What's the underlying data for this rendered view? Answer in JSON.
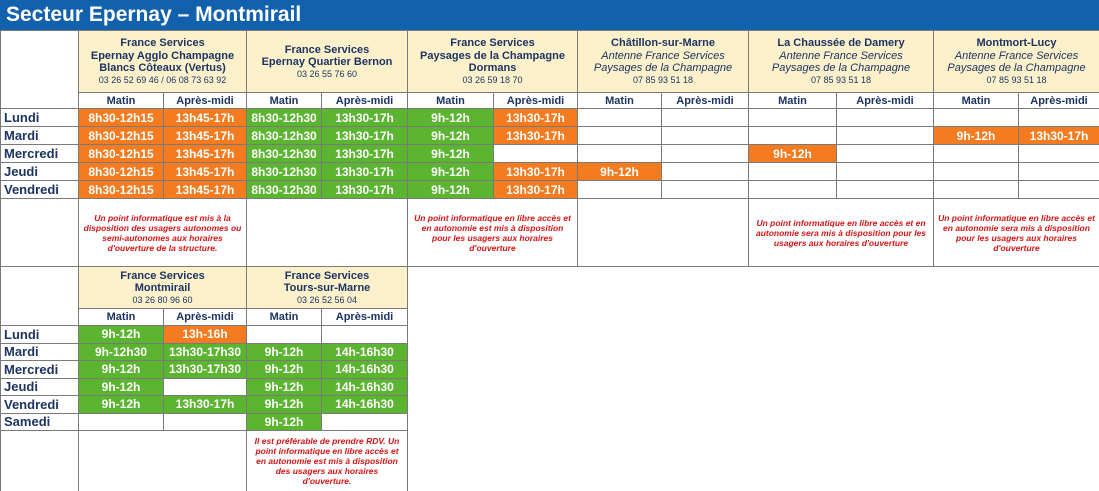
{
  "title": "Secteur Epernay – Montmirail",
  "slots": [
    "Matin",
    "Après-midi"
  ],
  "blocks": [
    {
      "days": [
        "Lundi",
        "Mardi",
        "Mercredi",
        "Jeudi",
        "Vendredi"
      ],
      "services": [
        {
          "name": [
            "France Services",
            "Epernay Agglo Champagne",
            "Blancs Côteaux (Vertus)"
          ],
          "phone": "03 26 52 69 46 / 06 08 73 63 92",
          "schedule": [
            [
              {
                "text": "8h30-12h15",
                "color": "#f47b20"
              },
              {
                "text": "13h45-17h",
                "color": "#f47b20"
              }
            ],
            [
              {
                "text": "8h30-12h15",
                "color": "#f47b20"
              },
              {
                "text": "13h45-17h",
                "color": "#f47b20"
              }
            ],
            [
              {
                "text": "8h30-12h15",
                "color": "#f47b20"
              },
              {
                "text": "13h45-17h",
                "color": "#f47b20"
              }
            ],
            [
              {
                "text": "8h30-12h15",
                "color": "#f47b20"
              },
              {
                "text": "13h45-17h",
                "color": "#f47b20"
              }
            ],
            [
              {
                "text": "8h30-12h15",
                "color": "#f47b20"
              },
              {
                "text": "13h45-17h",
                "color": "#f47b20"
              }
            ]
          ],
          "note": "Un point informatique est mis à la disposition des usagers autonomes ou semi-autonomes aux horaires d'ouverture de la structure."
        },
        {
          "name": [
            "France Services",
            "Epernay Quartier Bernon"
          ],
          "phone": "03 26 55 76 60",
          "schedule": [
            [
              {
                "text": "8h30-12h30",
                "color": "#5cb531"
              },
              {
                "text": "13h30-17h",
                "color": "#5cb531"
              }
            ],
            [
              {
                "text": "8h30-12h30",
                "color": "#5cb531"
              },
              {
                "text": "13h30-17h",
                "color": "#5cb531"
              }
            ],
            [
              {
                "text": "8h30-12h30",
                "color": "#5cb531"
              },
              {
                "text": "13h30-17h",
                "color": "#5cb531"
              }
            ],
            [
              {
                "text": "8h30-12h30",
                "color": "#5cb531"
              },
              {
                "text": "13h30-17h",
                "color": "#5cb531"
              }
            ],
            [
              {
                "text": "8h30-12h30",
                "color": "#5cb531"
              },
              {
                "text": "13h30-17h",
                "color": "#5cb531"
              }
            ]
          ]
        },
        {
          "name": [
            "France Services",
            "Paysages de la Champagne",
            "Dormans"
          ],
          "phone": "03 26 59 18 70",
          "schedule": [
            [
              {
                "text": "9h-12h",
                "color": "#5cb531"
              },
              {
                "text": "13h30-17h",
                "color": "#f47b20"
              }
            ],
            [
              {
                "text": "9h-12h",
                "color": "#5cb531"
              },
              {
                "text": "13h30-17h",
                "color": "#f47b20"
              }
            ],
            [
              {
                "text": "9h-12h",
                "color": "#5cb531"
              },
              null
            ],
            [
              {
                "text": "9h-12h",
                "color": "#5cb531"
              },
              {
                "text": "13h30-17h",
                "color": "#f47b20"
              }
            ],
            [
              {
                "text": "9h-12h",
                "color": "#5cb531"
              },
              {
                "text": "13h30-17h",
                "color": "#f47b20"
              }
            ]
          ],
          "note": "Un point informatique en libre accès et en autonomie est mis à disposition pour les usagers aux horaires d'ouverture"
        },
        {
          "name": [
            "Châtillon-sur-Marne"
          ],
          "subtitle": [
            "Antenne France Services",
            "Paysages de la Champagne"
          ],
          "phone": "07 85 93 51 18",
          "schedule": [
            [
              null,
              null
            ],
            [
              null,
              null
            ],
            [
              null,
              null
            ],
            [
              {
                "text": "9h-12h",
                "color": "#f47b20"
              },
              null
            ],
            [
              null,
              null
            ]
          ]
        },
        {
          "name": [
            "La Chaussée de Damery"
          ],
          "subtitle": [
            "Antenne France Services",
            "Paysages de la Champagne"
          ],
          "phone": "07 85 93 51 18",
          "schedule": [
            [
              null,
              null
            ],
            [
              null,
              null
            ],
            [
              {
                "text": "9h-12h",
                "color": "#f47b20"
              },
              null
            ],
            [
              null,
              null
            ],
            [
              null,
              null
            ]
          ],
          "note": "Un point informatique en libre accès et en autonomie sera mis à disposition pour les usagers aux horaires d'ouverture"
        },
        {
          "name": [
            "Montmort-Lucy"
          ],
          "subtitle": [
            "Antenne France Services",
            "Paysages de la Champagne"
          ],
          "phone": "07 85 93 51 18",
          "schedule": [
            [
              null,
              null
            ],
            [
              {
                "text": "9h-12h",
                "color": "#f47b20"
              },
              {
                "text": "13h30-17h",
                "color": "#f47b20"
              }
            ],
            [
              null,
              null
            ],
            [
              null,
              null
            ],
            [
              null,
              null
            ]
          ],
          "note": "Un point informatique en libre accès et en autonomie sera mis à disposition pour les usagers aux horaires d'ouverture"
        }
      ]
    },
    {
      "days": [
        "Lundi",
        "Mardi",
        "Mercredi",
        "Jeudi",
        "Vendredi",
        "Samedi"
      ],
      "services": [
        {
          "name": [
            "France Services",
            "Montmirail"
          ],
          "phone": "03 26 80 96 60",
          "schedule": [
            [
              {
                "text": "9h-12h",
                "color": "#5cb531"
              },
              {
                "text": "13h-16h",
                "color": "#f47b20"
              }
            ],
            [
              {
                "text": "9h-12h30",
                "color": "#5cb531"
              },
              {
                "text": "13h30-17h30",
                "color": "#5cb531"
              }
            ],
            [
              {
                "text": "9h-12h",
                "color": "#5cb531"
              },
              {
                "text": "13h30-17h30",
                "color": "#5cb531"
              }
            ],
            [
              {
                "text": "9h-12h",
                "color": "#5cb531"
              },
              null
            ],
            [
              {
                "text": "9h-12h",
                "color": "#5cb531"
              },
              {
                "text": "13h30-17h",
                "color": "#5cb531"
              }
            ],
            [
              null,
              null
            ]
          ]
        },
        {
          "name": [
            "France Services",
            "Tours-sur-Marne"
          ],
          "phone": "03 26 52 56 04",
          "schedule": [
            [
              null,
              null
            ],
            [
              {
                "text": "9h-12h",
                "color": "#5cb531"
              },
              {
                "text": "14h-16h30",
                "color": "#5cb531"
              }
            ],
            [
              {
                "text": "9h-12h",
                "color": "#5cb531"
              },
              {
                "text": "14h-16h30",
                "color": "#5cb531"
              }
            ],
            [
              {
                "text": "9h-12h",
                "color": "#5cb531"
              },
              {
                "text": "14h-16h30",
                "color": "#5cb531"
              }
            ],
            [
              {
                "text": "9h-12h",
                "color": "#5cb531"
              },
              {
                "text": "14h-16h30",
                "color": "#5cb531"
              }
            ],
            [
              {
                "text": "9h-12h",
                "color": "#5cb531"
              },
              null
            ]
          ],
          "note": "Il est préférable de prendre RDV. Un point informatique en libre accès et en autonomie est mis à disposition des usagers aux horaires d'ouverture."
        }
      ]
    }
  ]
}
